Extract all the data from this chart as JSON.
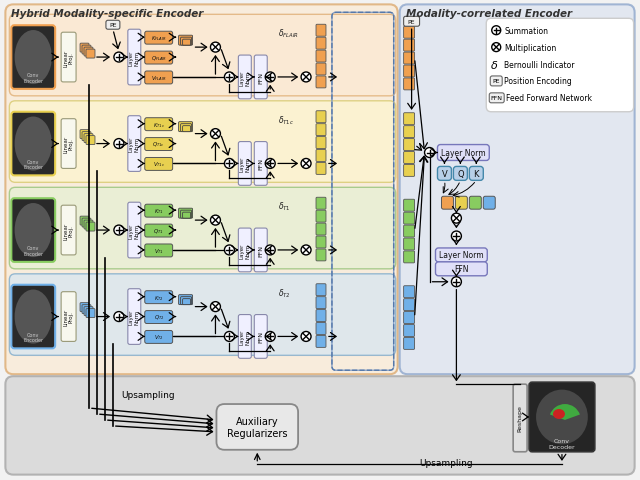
{
  "bg_color": "#f2f2f2",
  "hybrid_bg": "#fde8ce",
  "hybrid_ec": "#d4944a",
  "corr_bg": "#d8e0f0",
  "corr_ec": "#7090c0",
  "bottom_bg": "#d8d8d8",
  "bottom_ec": "#aaaaaa",
  "legend_bg": "#ffffff",
  "row_configs": [
    {
      "bg": "#fde8ce",
      "ec": "#d4944a",
      "color": "#f0a050",
      "label": "FLAIR"
    },
    {
      "bg": "#fef8c8",
      "ec": "#c8b840",
      "color": "#e8d050",
      "label": "T1c"
    },
    {
      "bg": "#e0f0d0",
      "ec": "#70b050",
      "color": "#88cc60",
      "label": "T1"
    },
    {
      "bg": "#cce4f8",
      "ec": "#5090c0",
      "color": "#70b0e8",
      "label": "T2"
    }
  ],
  "delta_labels": [
    "FLAIR",
    "T1c",
    "T1",
    "T2"
  ],
  "kqv_rows": [
    [
      "K_{FLAIR}",
      "Q_{FLAIR}",
      "V_{FLAIR}"
    ],
    [
      "K_{T1c}",
      "Q_{T1c}",
      "V_{T1c}"
    ],
    [
      "K_{T1}",
      "Q_{T1}",
      "V_{T1}"
    ],
    [
      "K_{T2}",
      "Q_{T2}",
      "V_{T2}"
    ]
  ],
  "mri_images": [
    "flair",
    "t1c",
    "t1",
    "t2"
  ],
  "figsize": [
    6.4,
    4.81
  ],
  "dpi": 100
}
